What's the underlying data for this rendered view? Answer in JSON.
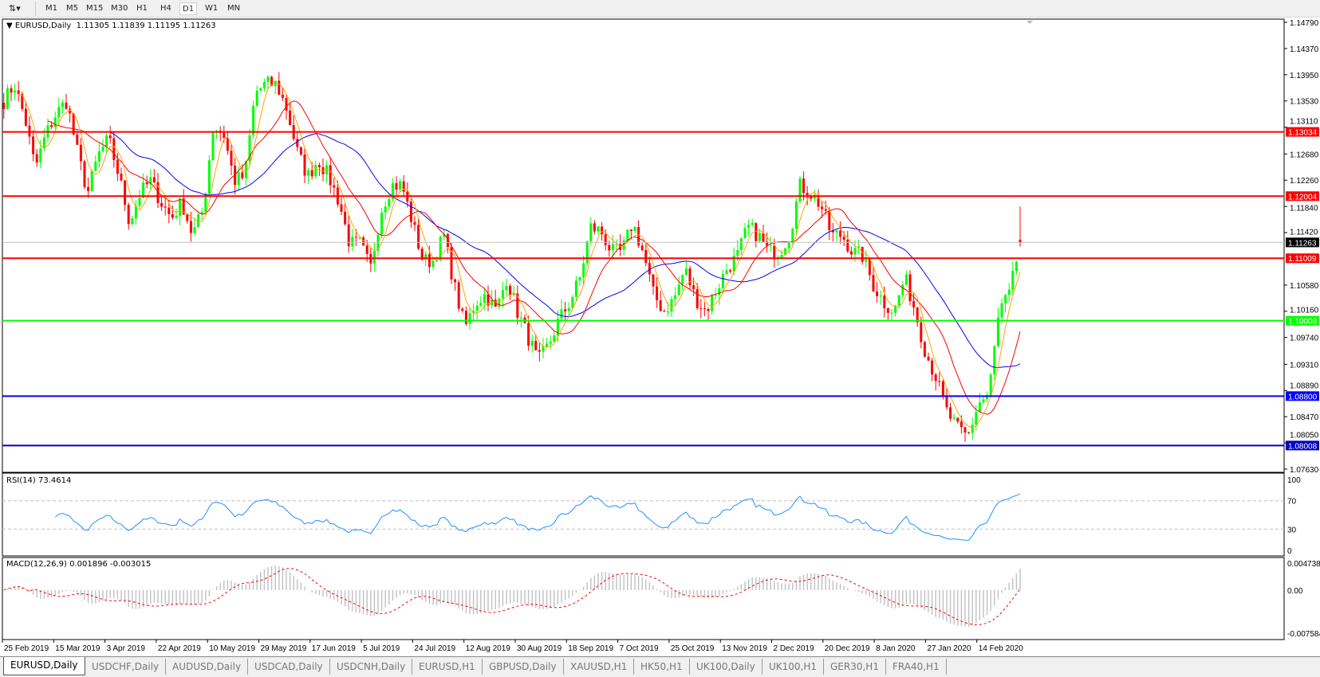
{
  "toolbar": {
    "icon": "chart-tools-icon",
    "timeframes": [
      "M1",
      "M5",
      "M15",
      "M30",
      "H1",
      "H4",
      "D1",
      "W1",
      "MN"
    ],
    "active": "D1"
  },
  "chart": {
    "symbol_title": "EURUSD,Daily",
    "ohlc": "1.11305 1.11839 1.11195 1.11263"
  },
  "chart_data": {
    "type": "candlestick",
    "symbol": "EURUSD",
    "timeframe": "Daily",
    "ylim": [
      1.0763,
      1.1479
    ],
    "y_ticks": [
      "1.14790",
      "1.14370",
      "1.13950",
      "1.13530",
      "1.13110",
      "1.12680",
      "1.12260",
      "1.11840",
      "1.11420",
      "1.10580",
      "1.10160",
      "1.09740",
      "1.09310",
      "1.08890",
      "1.08470",
      "1.08050",
      "1.07630"
    ],
    "x_ticks": [
      "25 Feb 2019",
      "15 Mar 2019",
      "3 Apr 2019",
      "22 Apr 2019",
      "10 May 2019",
      "29 May 2019",
      "17 Jun 2019",
      "5 Jul 2019",
      "24 Jul 2019",
      "12 Aug 2019",
      "30 Aug 2019",
      "18 Sep 2019",
      "7 Oct 2019",
      "25 Oct 2019",
      "13 Nov 2019",
      "2 Dec 2019",
      "20 Dec 2019",
      "8 Jan 2020",
      "27 Jan 2020",
      "14 Feb 2020"
    ],
    "close_path_approx": [
      1.1353,
      1.138,
      1.1326,
      1.1245,
      1.1299,
      1.1333,
      1.1353,
      1.1272,
      1.1205,
      1.1266,
      1.1292,
      1.1232,
      1.1158,
      1.1205,
      1.1225,
      1.1191,
      1.1165,
      1.1191,
      1.1138,
      1.1178,
      1.1313,
      1.1299,
      1.1225,
      1.1232,
      1.1367,
      1.138,
      1.138,
      1.134,
      1.1272,
      1.1232,
      1.1259,
      1.1232,
      1.1191,
      1.1124,
      1.1124,
      1.1084,
      1.1178,
      1.1218,
      1.1218,
      1.1158,
      1.1097,
      1.1097,
      1.1138,
      1.1057,
      1.0989,
      1.103,
      1.1043,
      1.1016,
      1.107,
      1.1016,
      1.0976,
      1.0935,
      1.0962,
      1.1003,
      1.103,
      1.107,
      1.1151,
      1.1144,
      1.1111,
      1.1111,
      1.1158,
      1.1111,
      1.1043,
      1.1016,
      1.1037,
      1.1084,
      1.1037,
      1.1016,
      1.105,
      1.1084,
      1.1104,
      1.1151,
      1.1138,
      1.1111,
      1.1111,
      1.1138,
      1.1218,
      1.1205,
      1.1185,
      1.1138,
      1.1138,
      1.1111,
      1.1104,
      1.1057,
      1.103,
      1.1016,
      1.107,
      1.1016,
      1.0949,
      1.0909,
      1.0855,
      1.0828,
      1.0814,
      1.0868,
      1.0882,
      1.1016,
      1.1043,
      1.1126
    ],
    "last_price": "1.11263",
    "horizontal_lines": [
      {
        "price": "1.13034",
        "color": "#ff0000"
      },
      {
        "price": "1.12004",
        "color": "#ff0000"
      },
      {
        "price": "1.11009",
        "color": "#ff0000"
      },
      {
        "price": "1.10008",
        "color": "#00ff00"
      },
      {
        "price": "1.08800",
        "color": "#0000ff"
      },
      {
        "price": "1.08008",
        "color": "#0000c0"
      }
    ],
    "colors": {
      "bull": "#00ff00",
      "bear": "#ff0000",
      "ma_slow": "#0000ff",
      "ma_mid": "#ff0000",
      "ma_fast": "#ffa500",
      "rsi": "#1e90ff",
      "macd_hist": "#c0c0c0",
      "macd_signal": "#ff0000"
    },
    "rsi": {
      "label": "RSI(14) 73.4614",
      "ticks": [
        "100",
        "70",
        "30",
        "0"
      ],
      "levels": [
        70,
        30
      ]
    },
    "macd": {
      "label": "MACD(12,26,9) 0.001896 -0.003015",
      "ticks": [
        "0.004738",
        "0.00",
        "-0.007584"
      ]
    }
  },
  "tabs": [
    {
      "label": "EURUSD,Daily",
      "active": true
    },
    {
      "label": "USDCHF,Daily"
    },
    {
      "label": "AUDUSD,Daily"
    },
    {
      "label": "USDCAD,Daily"
    },
    {
      "label": "USDCNH,Daily"
    },
    {
      "label": "EURUSD,H1"
    },
    {
      "label": "GBPUSD,Daily"
    },
    {
      "label": "XAUUSD,H1"
    },
    {
      "label": "HK50,H1"
    },
    {
      "label": "UK100,Daily"
    },
    {
      "label": "UK100,H1"
    },
    {
      "label": "GER30,H1"
    },
    {
      "label": "FRA40,H1"
    }
  ]
}
